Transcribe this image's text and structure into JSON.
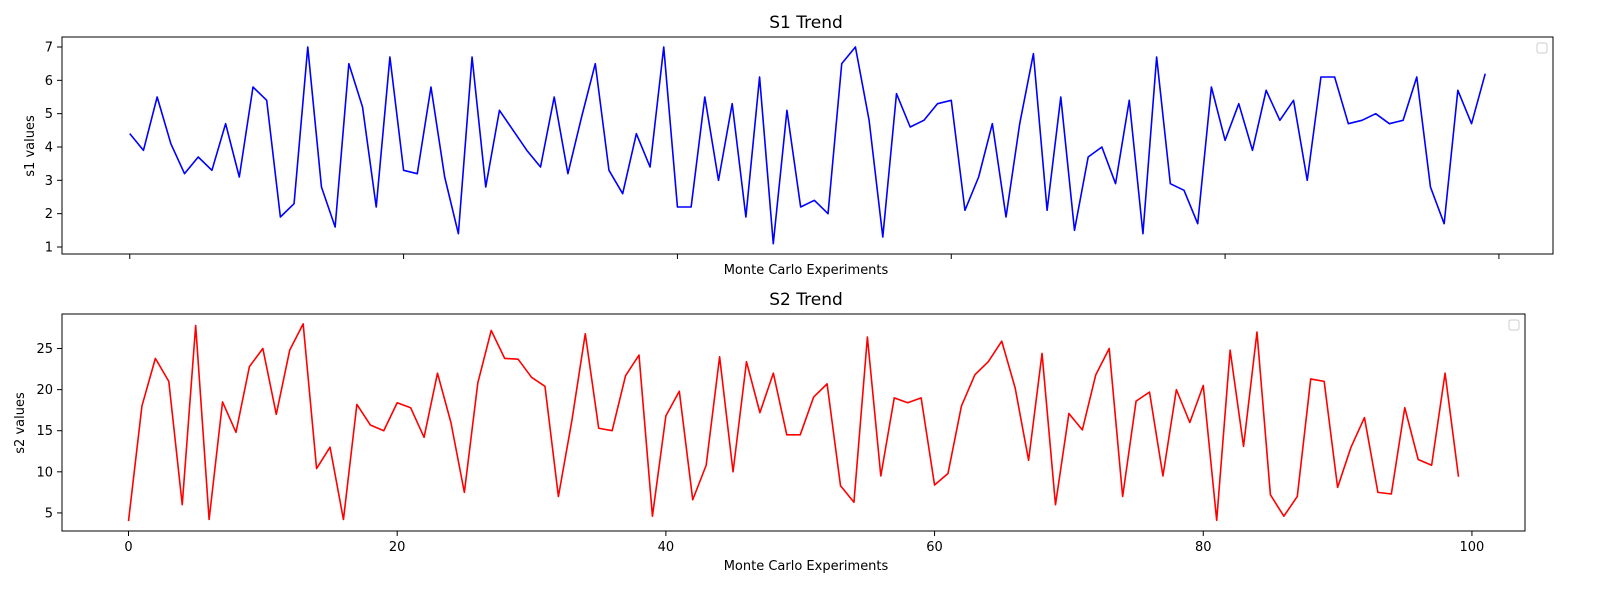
{
  "chart_data": [
    {
      "type": "line",
      "title": "S1 Trend",
      "xlabel": "Monte Carlo Experiments",
      "ylabel": "s1 values",
      "xlim": [
        -4.95,
        103.95
      ],
      "ylim": [
        0.79,
        7.3
      ],
      "xticks": [
        0,
        20,
        40,
        60,
        80,
        100
      ],
      "show_xtick_labels": false,
      "yticks": [
        1,
        2,
        3,
        4,
        5,
        6,
        7
      ],
      "grid": false,
      "legend": {
        "placement": "top-right",
        "entries": []
      },
      "series": [
        {
          "color": "#0000ff",
          "x": [
            0,
            1,
            2,
            3,
            4,
            5,
            6,
            7,
            8,
            9,
            10,
            11,
            12,
            13,
            14,
            15,
            16,
            17,
            18,
            19,
            20,
            21,
            22,
            23,
            24,
            25,
            26,
            27,
            28,
            29,
            30,
            31,
            32,
            33,
            34,
            35,
            36,
            37,
            38,
            39,
            40,
            41,
            42,
            43,
            44,
            45,
            46,
            47,
            48,
            49,
            50,
            51,
            52,
            53,
            54,
            55,
            56,
            57,
            58,
            59,
            60,
            61,
            62,
            63,
            64,
            65,
            66,
            67,
            68,
            69,
            70,
            71,
            72,
            73,
            74,
            75,
            76,
            77,
            78,
            79,
            80,
            81,
            82,
            83,
            84,
            85,
            86,
            87,
            88,
            89,
            90,
            91,
            92,
            93,
            94,
            95,
            96,
            97,
            98,
            99
          ],
          "y": [
            4.4,
            3.9,
            5.5,
            4.1,
            3.2,
            3.7,
            3.3,
            4.7,
            3.1,
            5.8,
            5.4,
            1.9,
            2.3,
            7.0,
            2.8,
            1.6,
            6.5,
            5.2,
            2.2,
            6.7,
            3.3,
            3.2,
            5.8,
            3.1,
            1.4,
            6.7,
            2.8,
            5.1,
            4.5,
            3.9,
            3.4,
            5.5,
            3.2,
            4.9,
            6.5,
            3.3,
            2.6,
            4.4,
            3.4,
            7.0,
            2.2,
            2.2,
            5.5,
            3.0,
            5.3,
            1.9,
            6.1,
            1.1,
            5.1,
            2.2,
            2.4,
            2.0,
            6.5,
            7.0,
            4.8,
            1.3,
            5.6,
            4.6,
            4.8,
            5.3,
            5.4,
            2.1,
            3.1,
            4.7,
            1.9,
            4.7,
            6.8,
            2.1,
            5.5,
            1.5,
            3.7,
            4.0,
            2.9,
            5.4,
            1.4,
            6.7,
            2.9,
            2.7,
            1.7,
            5.8,
            4.2,
            5.3,
            3.9,
            5.7,
            4.8,
            5.4,
            3.0,
            6.1,
            6.1,
            4.7,
            4.8,
            5.0,
            4.7,
            4.8,
            6.1,
            2.8,
            1.7,
            5.7,
            4.7,
            6.2
          ]
        }
      ]
    },
    {
      "type": "line",
      "title": "S2 Trend",
      "xlabel": "Monte Carlo Experiments",
      "ylabel": "s2 values",
      "xlim": [
        -4.95,
        103.95
      ],
      "ylim": [
        2.8,
        29.2
      ],
      "xticks": [
        0,
        20,
        40,
        60,
        80,
        100
      ],
      "show_xtick_labels": true,
      "yticks": [
        5,
        10,
        15,
        20,
        25
      ],
      "grid": false,
      "legend": {
        "placement": "top-right",
        "entries": []
      },
      "series": [
        {
          "color": "#ff0000",
          "x": [
            0,
            1,
            2,
            3,
            4,
            5,
            6,
            7,
            8,
            9,
            10,
            11,
            12,
            13,
            14,
            15,
            16,
            17,
            18,
            19,
            20,
            21,
            22,
            23,
            24,
            25,
            26,
            27,
            28,
            29,
            30,
            31,
            32,
            33,
            34,
            35,
            36,
            37,
            38,
            39,
            40,
            41,
            42,
            43,
            44,
            45,
            46,
            47,
            48,
            49,
            50,
            51,
            52,
            53,
            54,
            55,
            56,
            57,
            58,
            59,
            60,
            61,
            62,
            63,
            64,
            65,
            66,
            67,
            68,
            69,
            70,
            71,
            72,
            73,
            74,
            75,
            76,
            77,
            78,
            79,
            80,
            81,
            82,
            83,
            84,
            85,
            86,
            87,
            88,
            89,
            90,
            91,
            92,
            93,
            94,
            95,
            96,
            97,
            98,
            99
          ],
          "y": [
            4.0,
            18.0,
            23.8,
            21.0,
            6.0,
            27.8,
            4.2,
            18.5,
            14.8,
            22.8,
            25.0,
            17.0,
            24.8,
            28.0,
            10.4,
            13.0,
            4.2,
            18.2,
            15.7,
            15.0,
            18.4,
            17.8,
            14.2,
            22.0,
            16.0,
            7.5,
            20.8,
            27.2,
            23.8,
            23.7,
            21.5,
            20.4,
            7.0,
            16.2,
            26.8,
            15.3,
            15.0,
            21.7,
            24.2,
            4.6,
            16.8,
            19.8,
            6.6,
            10.8,
            24.0,
            10.0,
            23.4,
            17.2,
            22.0,
            14.5,
            14.5,
            19.1,
            20.7,
            8.3,
            6.3,
            26.4,
            9.5,
            19.0,
            18.4,
            19.0,
            8.4,
            9.8,
            18.0,
            21.8,
            23.4,
            25.9,
            20.2,
            11.4,
            24.4,
            6.0,
            17.1,
            15.1,
            21.8,
            25.0,
            7.0,
            18.6,
            19.7,
            9.5,
            20.0,
            16.0,
            20.5,
            4.1,
            24.8,
            13.1,
            27.0,
            7.2,
            4.6,
            7.0,
            21.3,
            21.0,
            8.1,
            13.0,
            16.6,
            7.5,
            7.3,
            17.8,
            11.5,
            10.8,
            22.0,
            9.4
          ]
        }
      ]
    }
  ]
}
